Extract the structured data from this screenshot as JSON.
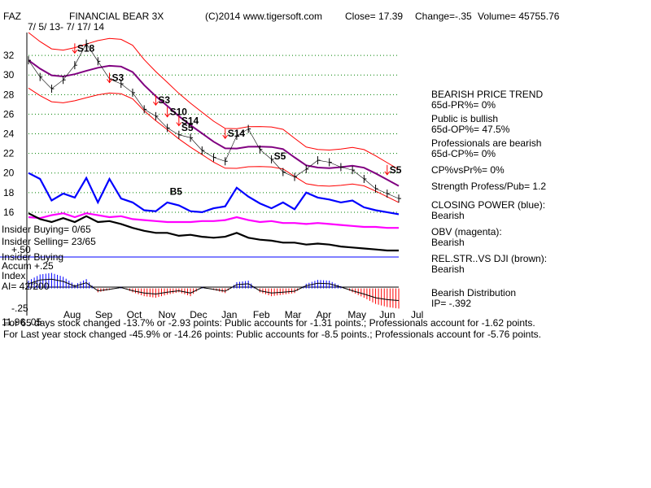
{
  "header": {
    "ticker": "FAZ",
    "name": "FINANCIAL BEAR 3X",
    "source": "(C)2014 www.tigersoft.com",
    "close": "Close=  17.39",
    "change": "Change=-.35",
    "volume": "Volume= 45755.76",
    "date_range": "7/ 5/ 13-  7/ 17/ 14"
  },
  "left_labels": {
    "insider_buying": "Insider Buying= 0/65",
    "insider_selling": "Insider Selling= 23/65",
    "plus50": "+.50",
    "insider_buying2": "Insider Buying",
    "accum1": "Accum  +.25",
    "accum2": "Index",
    "ai": "AI= 42/200",
    "minus25": "-.25",
    "overlap": "11.96 .05"
  },
  "side_panel": [
    "BEARISH PRICE TREND",
    "   65d-PR%= 0%",
    "Public is bullish",
    "   65d-OP%= 47.5%",
    "Professionals are bearish",
    "   65d-CP%= 0%",
    "CP%vsPr%=  0%",
    "Strength Profess/Pub= 1.2",
    "CLOSING POWER (blue):",
    "Bearish",
    "OBV (magenta):",
    "Bearish",
    "REL.STR..VS DJI (brown):",
    "Bearish",
    "Bearish Distribution",
    "    IP= -.392"
  ],
  "bottom_lines": [
    "For 65 days stock changed -13.7% or -2.93 points:  Public accounts for -1.31 points.;  Professionals account for -1.62 points.",
    "For Last year stock changed -45.9% or -14.26 points:  Public accounts for -8.5 points.;  Professionals account for -5.76 points."
  ],
  "chart_data": {
    "type": "line",
    "price_axis": {
      "ticks": [
        32,
        30,
        28,
        26,
        24,
        22,
        20,
        18,
        16
      ],
      "ylim": [
        15,
        34
      ]
    },
    "months": [
      "Aug",
      "Sep",
      "Oct",
      "Nov",
      "Dec",
      "Jan",
      "Feb",
      "Mar",
      "Apr",
      "May",
      "Jun",
      "Jul"
    ],
    "signals": [
      {
        "label": "S18",
        "price": 31.9,
        "arrow": "down"
      },
      {
        "label": "S3",
        "price": 28.9,
        "arrow": "down"
      },
      {
        "label": "S3",
        "price": 26.6,
        "arrow": "down"
      },
      {
        "label": "S10",
        "price": 25.4,
        "arrow": "down"
      },
      {
        "label": "S14",
        "price": 24.5,
        "arrow": "down"
      },
      {
        "label": "S5",
        "price": 23.8,
        "arrow": "none"
      },
      {
        "label": "S14",
        "price": 23.2,
        "arrow": "down"
      },
      {
        "label": "S5",
        "price": 20.9,
        "arrow": "none"
      },
      {
        "label": "S5",
        "price": 19.5,
        "arrow": "down"
      },
      {
        "label": "B5",
        "price": 17.3,
        "arrow": "none"
      }
    ],
    "series": [
      {
        "name": "FINANCIAL BEAR 3X",
        "color": "#000000",
        "values": [
          31.5,
          29.8,
          28.6,
          29.5,
          31.0,
          33.2,
          31.4,
          29.6,
          29.1,
          28.2,
          26.5,
          25.8,
          24.6,
          23.9,
          23.6,
          22.3,
          21.6,
          21.2,
          23.8,
          24.5,
          22.4,
          21.4,
          20.1,
          19.6,
          20.4,
          21.3,
          21.1,
          20.6,
          20.3,
          19.4,
          18.4,
          17.9,
          17.4
        ]
      },
      {
        "name": "CLOSING POWER (blue)",
        "color": "#0000ff",
        "values": [
          20.0,
          19.4,
          17.2,
          17.9,
          17.5,
          19.5,
          17.0,
          19.4,
          17.4,
          17.0,
          16.2,
          16.1,
          17.0,
          16.7,
          16.1,
          16.0,
          16.4,
          16.6,
          18.5,
          17.6,
          16.9,
          16.4,
          17.0,
          16.3,
          18.0,
          17.5,
          17.3,
          17.0,
          17.2,
          16.5,
          16.2,
          16.0,
          15.8
        ]
      },
      {
        "name": "OBV (magenta)",
        "color": "#ff00ff",
        "values": [
          15.5,
          15.4,
          15.7,
          15.9,
          15.5,
          15.9,
          15.7,
          15.5,
          15.6,
          15.3,
          15.2,
          15.1,
          15.0,
          15.0,
          15.0,
          15.1,
          15.1,
          15.2,
          15.5,
          15.2,
          15.0,
          15.1,
          14.9,
          14.9,
          14.8,
          14.9,
          14.8,
          14.7,
          14.6,
          14.5,
          14.5,
          14.4,
          14.4
        ]
      },
      {
        "name": "REL.STR..VS DJI (brown)",
        "color": "#000000",
        "values": [
          15.9,
          15.3,
          15.0,
          15.4,
          15.0,
          15.6,
          15.0,
          15.1,
          14.8,
          14.4,
          14.1,
          13.9,
          13.9,
          13.6,
          13.7,
          13.5,
          13.4,
          13.5,
          13.9,
          13.4,
          13.2,
          13.1,
          12.9,
          12.9,
          12.7,
          12.8,
          12.7,
          12.5,
          12.4,
          12.3,
          12.2,
          12.1,
          12.1
        ]
      }
    ],
    "accum_index": {
      "ylim": [
        -0.35,
        0.3
      ],
      "values": [
        0.1,
        0.18,
        0.2,
        0.15,
        0.05,
        0.12,
        -0.05,
        -0.02,
        0.02,
        -0.05,
        -0.1,
        -0.12,
        -0.08,
        -0.05,
        -0.1,
        0.02,
        -0.02,
        -0.06,
        0.08,
        0.1,
        -0.05,
        -0.1,
        -0.08,
        -0.06,
        0.06,
        0.11,
        0.1,
        0.03,
        -0.05,
        -0.12,
        -0.2,
        -0.24,
        -0.26
      ]
    }
  }
}
